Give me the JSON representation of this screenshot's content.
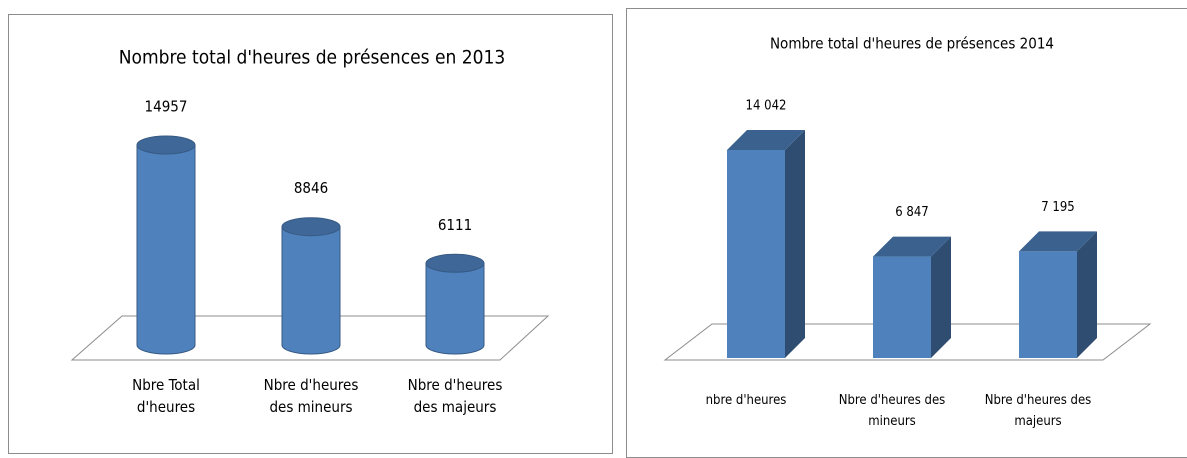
{
  "chart_data": [
    {
      "type": "cylinder",
      "title": "Nombre total d'heures de présences en 2013",
      "categories": [
        "Nbre Total d'heures",
        "Nbre d'heures des mineurs",
        "Nbre d'heures des majeurs"
      ],
      "values": [
        14957,
        8846,
        6111
      ],
      "color": "#4f81bd"
    },
    {
      "type": "box",
      "title": "Nombre total d'heures de présences 2014",
      "categories": [
        "nbre d'heures",
        "Nbre d'heures des mineurs",
        "Nbre d'heures des majeurs"
      ],
      "values": [
        14042,
        6847,
        7195
      ],
      "value_labels": [
        "14 042",
        "6 847",
        "7 195"
      ],
      "color": "#4f81bd"
    }
  ]
}
